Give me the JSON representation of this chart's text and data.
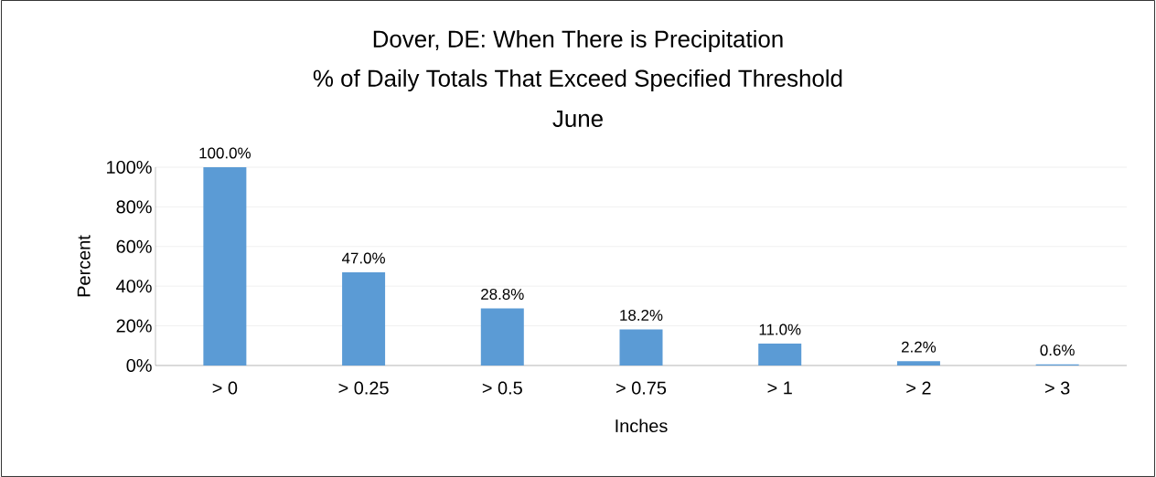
{
  "chart_data": {
    "type": "bar",
    "title": "Dover, DE: When There is Precipitation",
    "subtitle": "% of Daily Totals That Exceed Specified Threshold",
    "annotations": [
      "June"
    ],
    "xlabel": "Inches",
    "ylabel": "Percent",
    "categories": [
      "> 0",
      "> 0.25",
      "> 0.5",
      "> 0.75",
      "> 1",
      "> 2",
      "> 3"
    ],
    "values": [
      100.0,
      47.0,
      28.8,
      18.2,
      11.0,
      2.2,
      0.6
    ],
    "value_labels": [
      "100.0%",
      "47.0%",
      "28.8%",
      "18.2%",
      "11.0%",
      "2.2%",
      "0.6%"
    ],
    "color": "#5b9bd5",
    "ylim": [
      0,
      100
    ],
    "yticks": [
      {
        "value": 0,
        "label": "0%"
      },
      {
        "value": 20,
        "label": "20%"
      },
      {
        "value": 40,
        "label": "40%"
      },
      {
        "value": 60,
        "label": "60%"
      },
      {
        "value": 80,
        "label": "80%"
      },
      {
        "value": 100,
        "label": "100%"
      }
    ],
    "grid": "y"
  }
}
